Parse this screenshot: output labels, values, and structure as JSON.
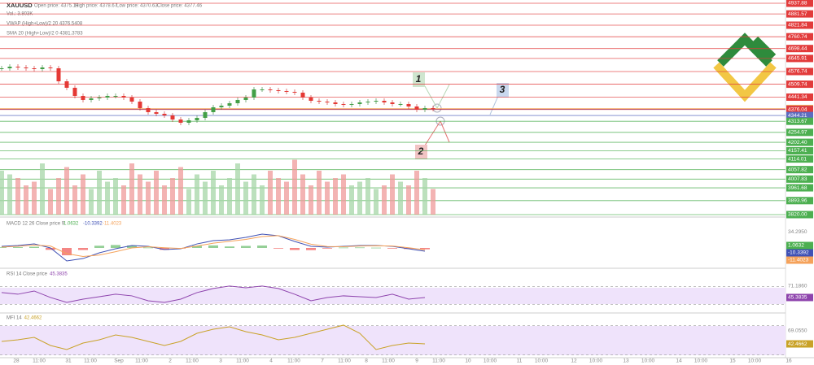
{
  "header": {
    "symbol": "XAUUSD",
    "open": "Open price: 4375.19",
    "high": "High price: 4378.67",
    "low": "Low price: 4370.63",
    "close": "Close price: 4377.46",
    "volume": "Vol.: 3.803K",
    "vwap": "VWAP (High+Low)/2 20 4376.5408",
    "sma": "SMA 20 (High+Low)/2 0 4381.3783"
  },
  "annotations": [
    "1",
    "2",
    "3"
  ],
  "price": {
    "ylim": [
      3820,
      4937.88
    ],
    "close": [
      4593.9,
      4602.5,
      4598.2,
      4593.9,
      4589.6,
      4598.2,
      4593.9,
      4525.1,
      4490.8,
      4447.8,
      4426.3,
      4434.9,
      4439.2,
      4447.8,
      4447.8,
      4439.2,
      4417.7,
      4383.3,
      4361.8,
      4353.2,
      4344.6,
      4323.1,
      4305.9,
      4318.8,
      4331.7,
      4361.8,
      4387.6,
      4396.2,
      4409.1,
      4426.3,
      4439.2,
      4482.2,
      4482.2,
      4477.9,
      4473.6,
      4469.3,
      4465.0,
      4439.2,
      4422.0,
      4417.7,
      4413.4,
      4404.8,
      4400.5,
      4404.8,
      4413.4,
      4417.7,
      4422.0,
      4413.4,
      4404.8,
      4404.8,
      4391.9,
      4374.7,
      4383.3,
      4378.9
    ],
    "volume": [
      60,
      55,
      50,
      40,
      45,
      70,
      35,
      50,
      65,
      40,
      55,
      35,
      60,
      45,
      50,
      40,
      70,
      55,
      45,
      60,
      40,
      50,
      65,
      35,
      55,
      45,
      60,
      40,
      50,
      70,
      45,
      55,
      40,
      60,
      50,
      45,
      75,
      55,
      40,
      60,
      45,
      50,
      55,
      40,
      45,
      50,
      35,
      40,
      55,
      45,
      40,
      60,
      50,
      35
    ]
  },
  "levels": [
    {
      "value": 4937.88,
      "color": "#e23b3b"
    },
    {
      "value": 4881.57,
      "color": "#e23b3b"
    },
    {
      "value": 4821.84,
      "color": "#e23b3b"
    },
    {
      "value": 4760.74,
      "color": "#e23b3b"
    },
    {
      "value": 4698.44,
      "color": "#e23b3b"
    },
    {
      "value": 4645.91,
      "color": "#e23b3b"
    },
    {
      "value": 4576.74,
      "color": "#e23b3b"
    },
    {
      "value": 4509.74,
      "color": "#e23b3b"
    },
    {
      "value": 4441.34,
      "color": "#e23b3b"
    },
    {
      "value": 4381.3783,
      "color": "#f5a25a"
    },
    {
      "value": 4376.5408,
      "color": "#3f51b5"
    },
    {
      "value": 4376.04,
      "color": "#e23b3b"
    },
    {
      "value": 4344.21,
      "color": "#5c6bc0"
    },
    {
      "value": 4313.67,
      "color": "#4caf50"
    },
    {
      "value": 4254.97,
      "color": "#4caf50"
    },
    {
      "value": 4202.4,
      "label": "4202.40",
      "color": "#4caf50"
    },
    {
      "value": 4157.41,
      "color": "#4caf50"
    },
    {
      "value": 4114.01,
      "color": "#4caf50"
    },
    {
      "value": 4057.82,
      "color": "#4caf50"
    },
    {
      "value": 4007.83,
      "color": "#4caf50"
    },
    {
      "value": 3961.68,
      "color": "#4caf50"
    },
    {
      "value": 3893.96,
      "color": "#4caf50"
    },
    {
      "value": 3820,
      "label": "3820.00",
      "color": "#4caf50"
    }
  ],
  "macd": {
    "label": "MACD 12 26 Close price 9",
    "ylim": [
      -50,
      50
    ],
    "yticks": [
      {
        "value": 34.295,
        "label": "34.2950"
      }
    ],
    "current": [
      {
        "value": 1.0632,
        "color": "#4caf50"
      },
      {
        "value": -10.3392,
        "color": "#3f51b5"
      },
      {
        "value": -11.4023,
        "color": "#f5a25a"
      }
    ],
    "macd": [
      3.4,
      5.1,
      8.5,
      0.0,
      -27.5,
      -22.4,
      -10.3,
      -1.8,
      5.1,
      3.4,
      -3.5,
      -1.8,
      8.5,
      15.4,
      17.1,
      22.3,
      29.1,
      25.7,
      13.7,
      3.4,
      1.7,
      3.4,
      5.1,
      5.1,
      3.4,
      -1.8,
      -6.9
    ],
    "signal": [
      2.0,
      3.5,
      6.0,
      4.0,
      -12.0,
      -18.0,
      -15.0,
      -8.0,
      0.0,
      2.5,
      0.5,
      -1.0,
      4.0,
      10.0,
      14.0,
      18.0,
      24.0,
      26.0,
      18.0,
      8.0,
      3.0,
      2.5,
      4.0,
      4.5,
      4.0,
      0.5,
      -4.0
    ],
    "histogram": [
      1.4,
      1.6,
      2.5,
      -4.0,
      -15.5,
      -4.4,
      4.7,
      6.2,
      5.1,
      0.9,
      -4.0,
      -0.8,
      4.5,
      5.4,
      3.1,
      4.3,
      5.1,
      -0.3,
      -4.3,
      -4.6,
      -1.3,
      0.9,
      1.1,
      0.6,
      -0.6,
      -2.3,
      -2.9
    ]
  },
  "rsi": {
    "label": "RSI 14 Close price",
    "ylim": [
      0,
      100
    ],
    "levels": [
      70,
      30
    ],
    "yticks": [
      {
        "value": 71.186,
        "label": "71.1860"
      }
    ],
    "current": {
      "value": 45.3835,
      "color": "#8e44ad"
    },
    "values": [
      56.5,
      52.8,
      60.1,
      45.4,
      34.3,
      41.7,
      47.2,
      52.8,
      49.1,
      38.0,
      34.3,
      41.7,
      56.5,
      65.7,
      71.2,
      67.5,
      71.2,
      65.7,
      52.8,
      38.0,
      45.4,
      49.1,
      47.2,
      45.4,
      52.8,
      41.7,
      45.4
    ]
  },
  "mfi": {
    "label": "MFI 14",
    "ylim": [
      0,
      100
    ],
    "levels": [
      80,
      20
    ],
    "yticks": [
      {
        "value": 69.055,
        "label": "69.0550"
      }
    ],
    "current": {
      "value": 42.4662,
      "color": "#c9a227"
    },
    "values": [
      47.5,
      50.8,
      55.8,
      39.2,
      30.9,
      44.2,
      50.8,
      60.8,
      55.8,
      47.5,
      39.2,
      47.5,
      64.1,
      72.4,
      77.4,
      67.5,
      60.8,
      50.8,
      55.8,
      64.1,
      72.4,
      80.8,
      64.1,
      30.9,
      39.2,
      44.2,
      42.5
    ]
  },
  "time_labels": [
    "28",
    "11:00",
    "31",
    "11:00",
    "Sep",
    "11:00",
    "2",
    "11:00",
    "3",
    "11:00",
    "4",
    "11:00",
    "7",
    "11:00",
    "8",
    "11:00",
    "9",
    "11:00",
    "10",
    "10:00",
    "11",
    "10:00",
    "12",
    "10:00",
    "13",
    "10:00",
    "14",
    "10:00",
    "15",
    "10:00",
    "16"
  ]
}
